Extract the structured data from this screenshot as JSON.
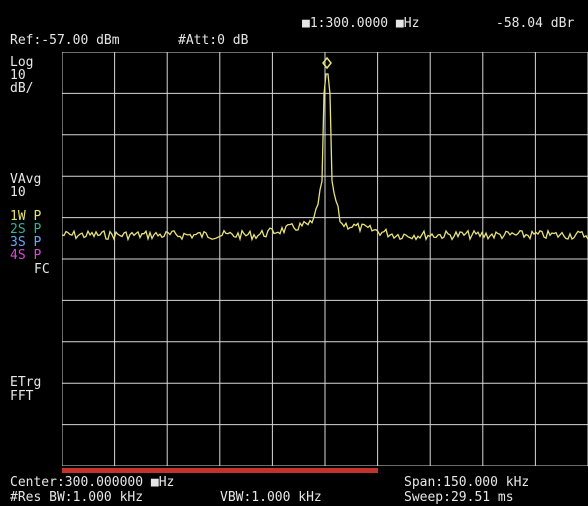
{
  "header": {
    "marker_readout": "■1:300.0000 ■Hz",
    "marker_level": "-58.04 dBr",
    "ref_level": "Ref:-57.00 dBm",
    "attenuation": "#Att:0 dB"
  },
  "sidebar": {
    "scale_type": "Log",
    "scale_value": "10",
    "scale_unit": "dB/",
    "avg_label": "VAvg",
    "avg_value": "10",
    "traces": [
      {
        "label": "1W P",
        "color": "#e5e36a"
      },
      {
        "label": "2S P",
        "color": "#2fb39a"
      },
      {
        "label": "3S P",
        "color": "#6aa5ff"
      },
      {
        "label": "4S P",
        "color": "#d64bd6"
      }
    ],
    "fc_label": "FC",
    "trigger_label": "ETrg",
    "fft_label": "FFT"
  },
  "footer": {
    "center_freq": "Center:300.000000 ■Hz",
    "span": "Span:150.000 kHz",
    "rbw": "#Res BW:1.000 kHz",
    "vbw": "VBW:1.000 kHz",
    "sweep": "Sweep:29.51 ms",
    "sweep_progress": 0.6
  },
  "colors": {
    "trace": "#e8e27a",
    "grid": "#d8d8d8",
    "background": "#000000",
    "progress": "#c4332b"
  },
  "icons": {
    "marker": "marker-diamond-icon"
  }
}
